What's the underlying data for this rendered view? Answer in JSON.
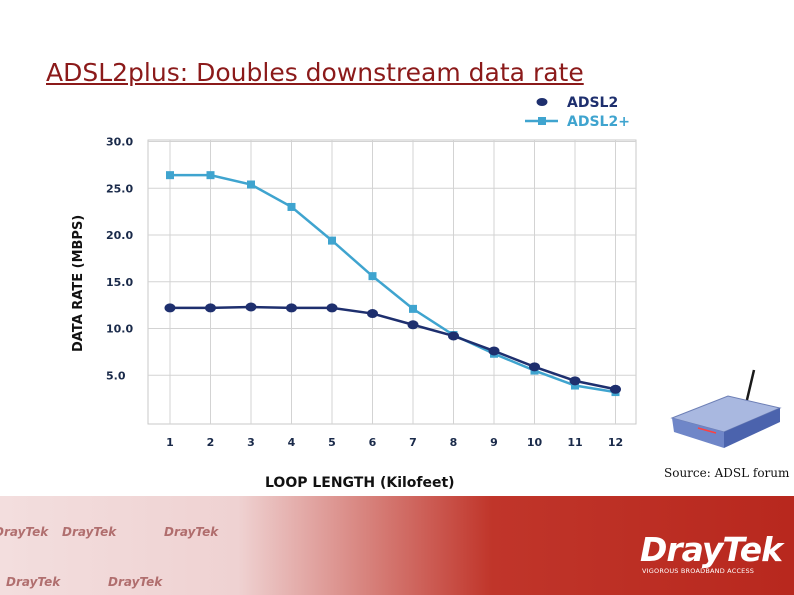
{
  "slide": {
    "title": "ADSL2plus: Doubles downstream data rate",
    "source_note": "Source: ADSL forum"
  },
  "chart_data": {
    "type": "line",
    "xlabel": "LOOP LENGTH (Kilofeet)",
    "ylabel": "DATA RATE (MBPS)",
    "x": [
      1,
      2,
      3,
      4,
      5,
      6,
      7,
      8,
      9,
      10,
      11,
      12
    ],
    "y_ticks": [
      "5.0",
      "10.0",
      "15.0",
      "20.0",
      "25.0",
      "30.0"
    ],
    "ylim": [
      0,
      30
    ],
    "grid": true,
    "legend": "top-right",
    "series": [
      {
        "name": "ADSL2",
        "color": "#1e2f6e",
        "marker": "circle",
        "values": [
          12.2,
          12.2,
          12.3,
          12.2,
          12.2,
          11.6,
          10.4,
          9.2,
          7.6,
          5.9,
          4.4,
          3.5
        ]
      },
      {
        "name": "ADSL2+",
        "color": "#3fa4cf",
        "marker": "square",
        "values": [
          26.4,
          26.4,
          25.4,
          23.0,
          19.4,
          15.6,
          12.1,
          9.3,
          7.3,
          5.5,
          3.9,
          3.2
        ]
      }
    ]
  },
  "footer": {
    "watermark_text": "DrayTek",
    "brand": "DrayTek",
    "tagline": "VIGOROUS BROADBAND ACCESS",
    "accent_color": "#b8281e"
  }
}
